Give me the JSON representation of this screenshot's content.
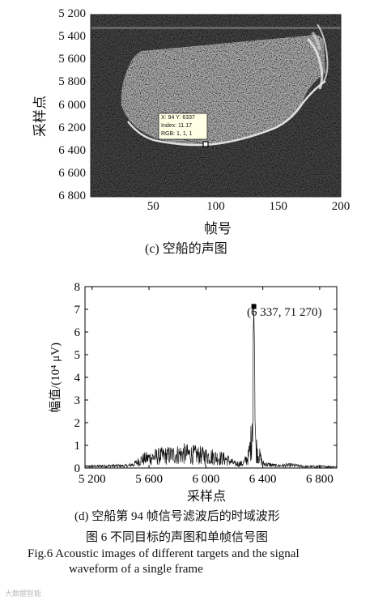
{
  "panel_c": {
    "y_ticks": [
      "5 200",
      "5 400",
      "5 600",
      "5 800",
      "6 000",
      "6 200",
      "6 400",
      "6 600",
      "6 800"
    ],
    "x_ticks": [
      "50",
      "100",
      "150",
      "200"
    ],
    "y_label": "采样点",
    "x_label": "帧号",
    "datatip": [
      "X: 94 Y: 6337",
      "Index: 11.17",
      "RGB: 1, 1, 1"
    ],
    "caption": "(c)  空船的声图"
  },
  "panel_d": {
    "caption": "(d)  空船第 94 帧信号滤波后的时域波形",
    "peak_label": "(6 337, 71 270)",
    "x_label": "采样点",
    "y_label": "幅值/(10⁴ μV)"
  },
  "figure": {
    "caption_cn": "图 6    不同目标的声图和单帧信号图",
    "caption_en_line1": "Fig.6    Acoustic images of different targets and the signal",
    "caption_en_line2": "waveform of a single frame"
  },
  "watermark": "大数据智能",
  "chart_data": [
    {
      "type": "heatmap",
      "title": "",
      "xlabel": "帧号",
      "ylabel": "采样点",
      "xlim": [
        0,
        200
      ],
      "ylim": [
        6800,
        5200
      ],
      "x_ticks": [
        50,
        100,
        150,
        200
      ],
      "y_ticks": [
        5200,
        5400,
        5600,
        5800,
        6000,
        6200,
        6400,
        6600,
        6800
      ],
      "annotation": {
        "x": 94,
        "y": 6337,
        "index": 11.17,
        "rgb": [
          1,
          1,
          1
        ]
      }
    },
    {
      "type": "line",
      "title": "",
      "xlabel": "采样点",
      "ylabel": "幅值/(10⁴ μV)",
      "xlim": [
        5150,
        6920
      ],
      "ylim": [
        0,
        8
      ],
      "x_ticks": [
        5200,
        5600,
        6000,
        6400,
        6800
      ],
      "y_ticks": [
        0,
        1,
        2,
        3,
        4,
        5,
        6,
        7,
        8
      ],
      "series": [
        {
          "x": [
            5150,
            5300,
            5450,
            5500,
            5550,
            5650,
            5750,
            5850,
            5950,
            6050,
            6150,
            6200,
            6260,
            6300,
            6320,
            6337,
            6350,
            6370,
            6400,
            6500,
            6600,
            6700,
            6800,
            6920
          ],
          "y": [
            0.1,
            0.15,
            0.15,
            0.3,
            0.6,
            0.8,
            0.9,
            1.0,
            0.9,
            0.8,
            0.6,
            0.3,
            0.3,
            0.8,
            2.0,
            7.127,
            1.5,
            1.0,
            0.3,
            0.15,
            0.2,
            0.1,
            0.1,
            0.1
          ]
        }
      ],
      "annotation": {
        "x": 6337,
        "y": 7.127,
        "text": "(6 337, 71 270)"
      }
    }
  ]
}
